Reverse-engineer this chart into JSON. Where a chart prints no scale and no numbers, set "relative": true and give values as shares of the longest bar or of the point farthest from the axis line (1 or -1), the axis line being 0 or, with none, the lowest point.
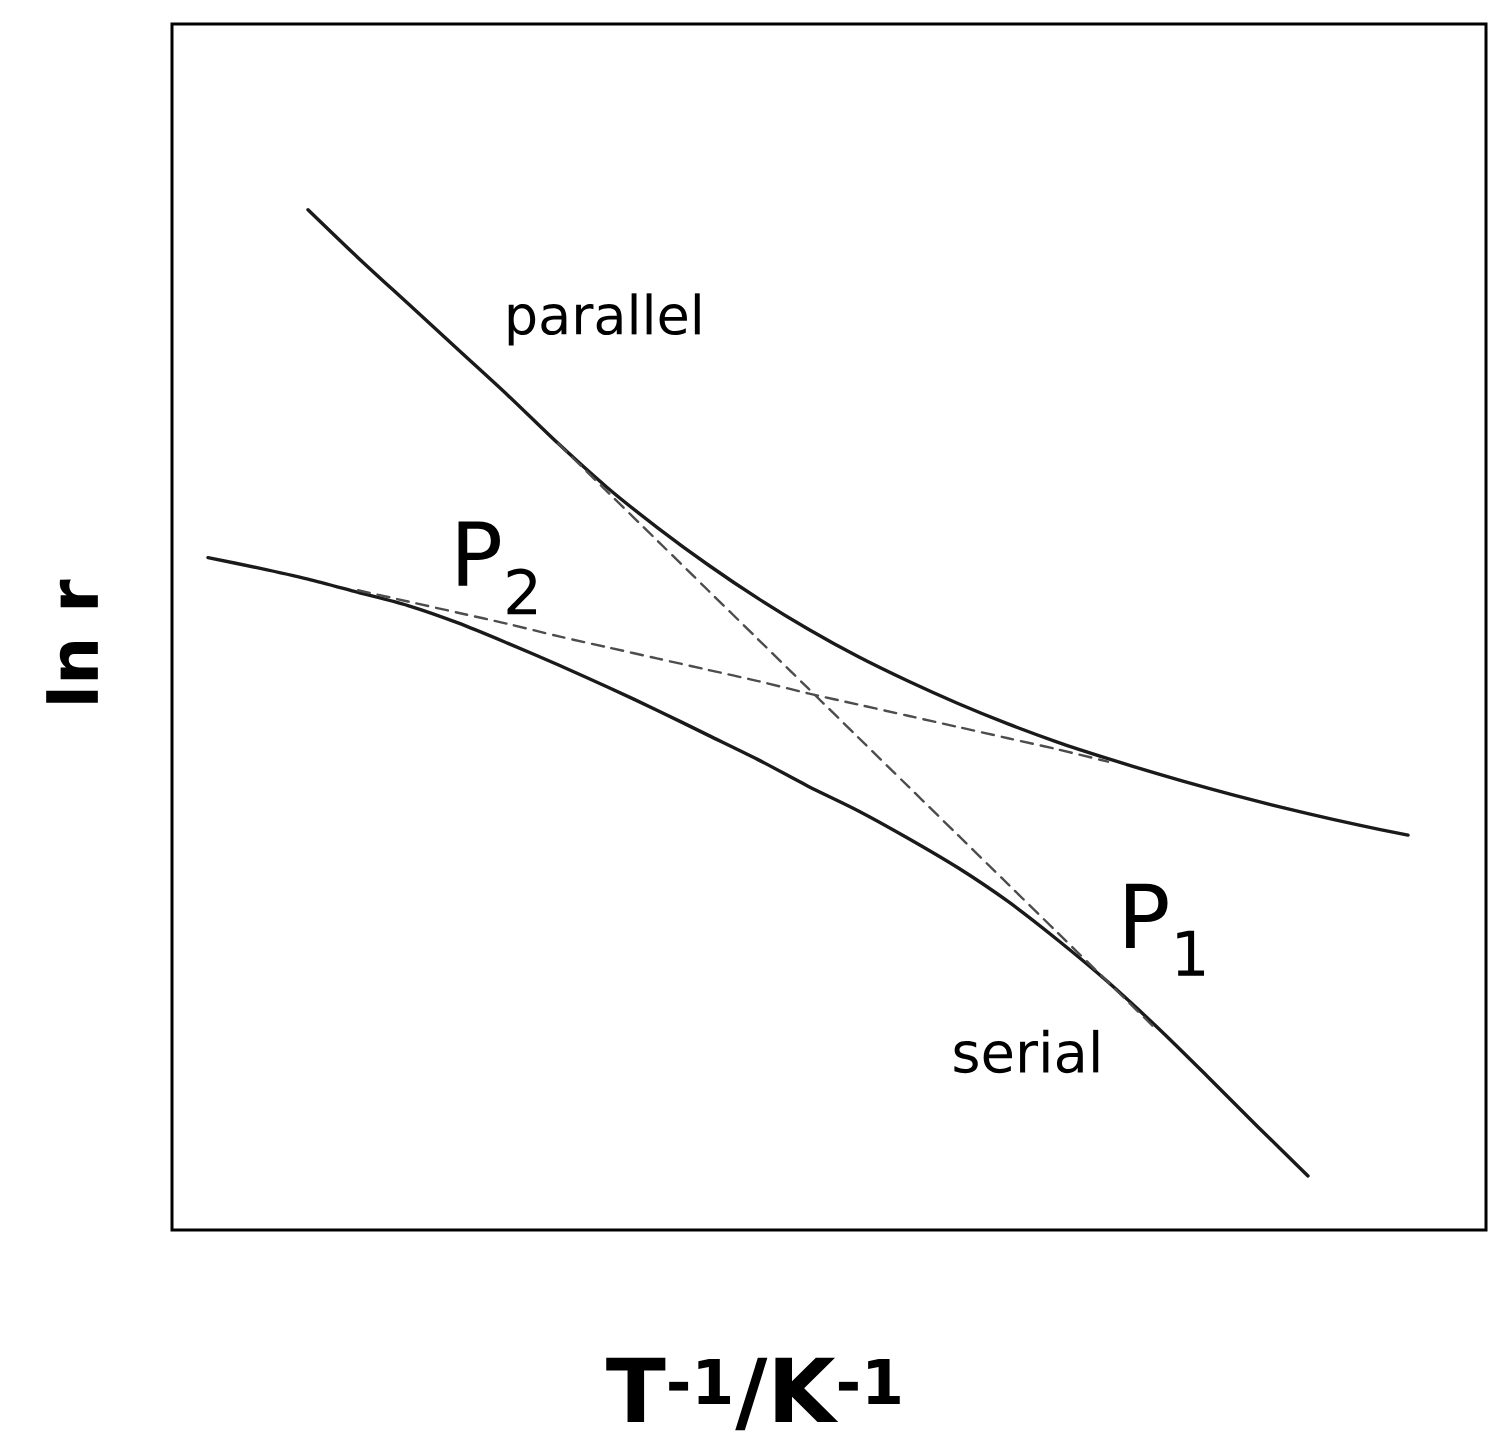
{
  "chart_data": {
    "type": "line",
    "relative": true,
    "xlabel": "T$^{-1}$/K$^{-1}$",
    "ylabel": "ln r",
    "categories": [
      null,
      null,
      null,
      null,
      null,
      null,
      null,
      null,
      null,
      null,
      null,
      null,
      null,
      null,
      null,
      null,
      null,
      null,
      null,
      null,
      null,
      null,
      null,
      null,
      null
    ],
    "series": [
      {
        "name": "parallel",
        "color": "#1a1a1a",
        "line_style": "solid",
        "values": [
          null,
          null,
          1.0,
          0.953,
          0.908,
          0.863,
          0.818,
          0.771,
          0.727,
          0.688,
          0.652,
          0.619,
          0.589,
          0.562,
          0.538,
          0.516,
          0.496,
          0.478,
          0.462,
          0.447,
          0.433,
          0.42,
          0.408,
          0.397,
          0.387
        ]
      },
      {
        "name": "serial",
        "color": "#1a1a1a",
        "line_style": "solid",
        "values": [
          0.659,
          0.649,
          0.638,
          0.625,
          0.612,
          0.595,
          0.575,
          0.554,
          0.532,
          0.509,
          0.485,
          0.461,
          0.435,
          0.411,
          0.384,
          0.355,
          0.322,
          0.284,
          0.243,
          0.198,
          0.15,
          0.101,
          0.053,
          null,
          null
        ]
      },
      {
        "name": "P$_{1}$",
        "color": "#4d4d4d",
        "line_style": "dashed",
        "values": [
          null,
          null,
          null,
          null,
          null,
          null,
          null,
          0.771,
          0.723,
          0.675,
          0.627,
          0.579,
          0.531,
          0.483,
          0.435,
          0.387,
          0.339,
          0.291,
          0.243,
          0.195,
          null,
          null,
          null,
          null,
          null
        ]
      },
      {
        "name": "P$_{2}$",
        "color": "#4d4d4d",
        "line_style": "dashed",
        "values": [
          null,
          null,
          null,
          0.627,
          0.616,
          0.605,
          0.594,
          0.582,
          0.571,
          0.56,
          0.549,
          0.538,
          0.526,
          0.515,
          0.504,
          0.493,
          0.482,
          0.471,
          0.459,
          null,
          null,
          null,
          null,
          null,
          null
        ]
      }
    ]
  }
}
